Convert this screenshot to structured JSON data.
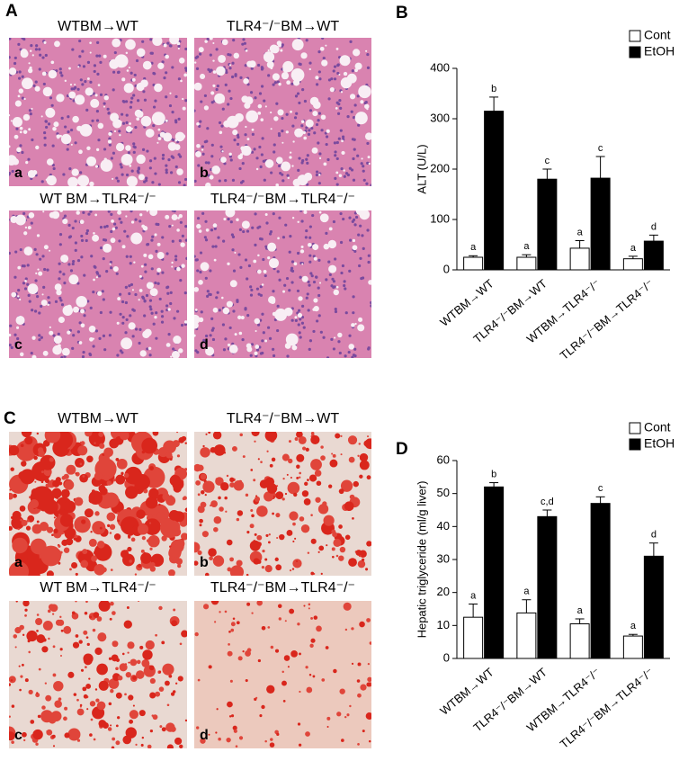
{
  "panels": {
    "A": {
      "label": "A",
      "stain": "he",
      "images": [
        {
          "title": "WTBM→WT",
          "letter": "a"
        },
        {
          "title": "TLR4⁻/⁻BM→WT",
          "letter": "b"
        },
        {
          "title": "WT BM→TLR4⁻/⁻",
          "letter": "c"
        },
        {
          "title": "TLR4⁻/⁻BM→TLR4⁻/⁻",
          "letter": "d"
        }
      ]
    },
    "B": {
      "label": "B"
    },
    "C": {
      "label": "C",
      "stain": "oil",
      "images": [
        {
          "title": "WTBM→WT",
          "letter": "a"
        },
        {
          "title": "TLR4⁻/⁻BM→WT",
          "letter": "b"
        },
        {
          "title": "WT BM→TLR4⁻/⁻",
          "letter": "c"
        },
        {
          "title": "TLR4⁻/⁻BM→TLR4⁻/⁻",
          "letter": "d"
        }
      ]
    },
    "D": {
      "label": "D"
    }
  },
  "chart_data": [
    {
      "type": "bar",
      "y_label": "ALT (U/L)",
      "categories": [
        "WTBM→WT",
        "TLR4⁻/⁻BM→WT",
        "WTBM→TLR4⁻/⁻",
        "TLR4⁻/⁻BM→TLR4⁻/⁻"
      ],
      "series": [
        {
          "name": "Cont",
          "color": "#ffffff",
          "values": [
            25,
            25,
            43,
            22
          ],
          "errors": [
            3,
            5,
            15,
            5
          ],
          "annotations": [
            "a",
            "a",
            "a",
            "a"
          ]
        },
        {
          "name": "EtOH",
          "color": "#000000",
          "values": [
            315,
            180,
            182,
            57
          ],
          "errors": [
            28,
            20,
            43,
            12
          ],
          "annotations": [
            "b",
            "c",
            "c",
            "d"
          ]
        }
      ],
      "ylim": [
        0,
        400
      ],
      "yticks": [
        0,
        100,
        200,
        300,
        400
      ],
      "legend": "top-right",
      "grid": false
    },
    {
      "type": "bar",
      "y_label": "Hepatic triglyceride (ml/g liver)",
      "categories": [
        "WTBM→WT",
        "TLR4⁻/⁻BM→WT",
        "WTBM→TLR4⁻/⁻",
        "TLR4⁻/⁻BM→TLR4⁻/⁻"
      ],
      "series": [
        {
          "name": "Cont",
          "color": "#ffffff",
          "values": [
            12.5,
            13.8,
            10.5,
            6.8
          ],
          "errors": [
            4,
            4,
            1.5,
            0.5
          ],
          "annotations": [
            "a",
            "a",
            "a",
            "a"
          ]
        },
        {
          "name": "EtOH",
          "color": "#000000",
          "values": [
            52,
            43,
            47,
            31
          ],
          "errors": [
            1.3,
            2,
            2,
            4
          ],
          "annotations": [
            "b",
            "c,d",
            "c",
            "d"
          ]
        }
      ],
      "ylim": [
        0,
        60
      ],
      "yticks": [
        0,
        10,
        20,
        30,
        40,
        50,
        60
      ],
      "legend": "top-right",
      "grid": false
    }
  ]
}
